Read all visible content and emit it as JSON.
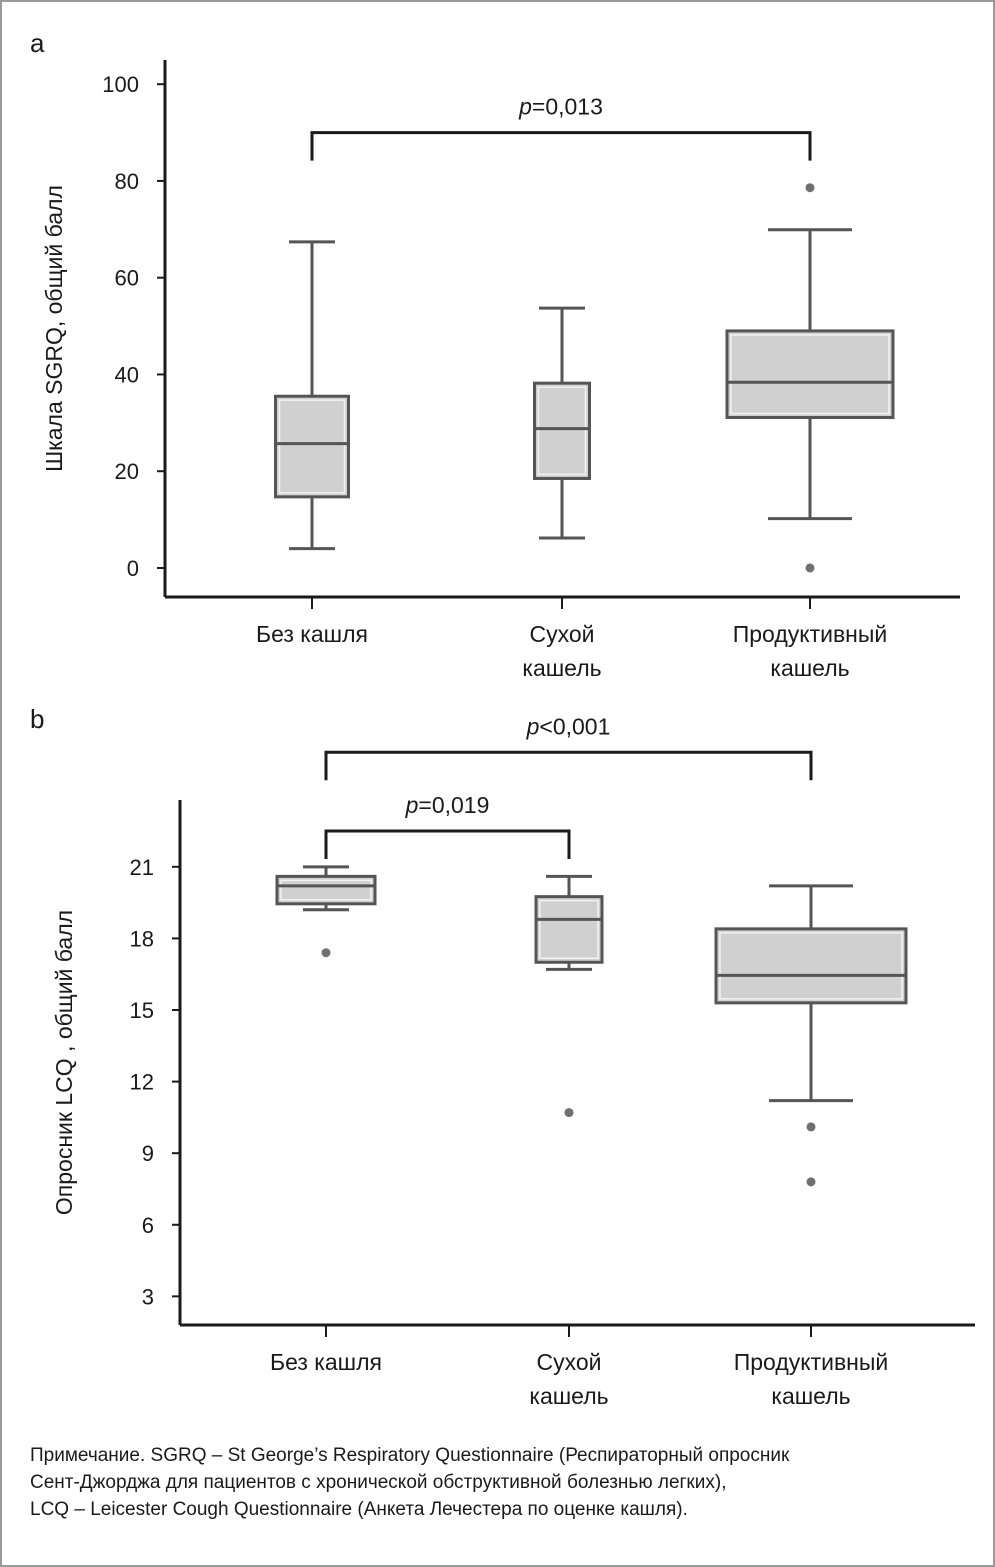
{
  "chart_data": [
    {
      "type": "box",
      "panel_label": "a",
      "ylabel": "Шкала SGRQ, общий балл",
      "ylim": [
        -6,
        105
      ],
      "yticks": [
        0,
        20,
        40,
        60,
        80,
        100
      ],
      "categories": [
        [
          "Без кашля"
        ],
        [
          "Сухой",
          "кашель"
        ],
        [
          "Продуктивный",
          "кашель"
        ]
      ],
      "boxes": [
        {
          "whisker_low": 4,
          "q1": 14.7,
          "median": 25.7,
          "q3": 35.5,
          "whisker_high": 67.4,
          "outliers": []
        },
        {
          "whisker_low": 6.2,
          "q1": 18.5,
          "median": 28.8,
          "q3": 38.2,
          "whisker_high": 53.7,
          "outliers": []
        },
        {
          "whisker_low": 10.2,
          "q1": 31.1,
          "median": 38.4,
          "q3": 49,
          "whisker_high": 69.9,
          "outliers": [
            78.6,
            0
          ]
        }
      ],
      "brackets": [
        {
          "from": 0,
          "to": 2,
          "level": 90,
          "p_label": "p",
          "p_value": "=0,013"
        }
      ]
    },
    {
      "type": "box",
      "panel_label": "b",
      "ylabel": "Опросник LCQ , общий балл",
      "ylim": [
        1.8,
        23.8
      ],
      "yticks": [
        3,
        6,
        9,
        12,
        15,
        18,
        21
      ],
      "categories": [
        [
          "Без кашля"
        ],
        [
          "Сухой",
          "кашель"
        ],
        [
          "Продуктивный",
          "кашель"
        ]
      ],
      "boxes": [
        {
          "whisker_low": 19.2,
          "q1": 19.45,
          "median": 20.2,
          "q3": 20.6,
          "whisker_high": 21,
          "outliers": [
            17.4
          ]
        },
        {
          "whisker_low": 16.7,
          "q1": 17.0,
          "median": 18.8,
          "q3": 19.75,
          "whisker_high": 20.6,
          "outliers": [
            10.7
          ]
        },
        {
          "whisker_low": 11.2,
          "q1": 15.3,
          "median": 16.45,
          "q3": 18.4,
          "whisker_high": 20.2,
          "outliers": [
            10.1,
            7.8
          ]
        }
      ],
      "brackets": [
        {
          "from": 0,
          "to": 2,
          "level": 25.8,
          "p_label": "p",
          "p_value": "<0,001"
        },
        {
          "from": 0,
          "to": 1,
          "level": 22.5,
          "p_label": "p",
          "p_value": "=0,019"
        }
      ]
    }
  ],
  "note": "Примечание. SGRQ – St George’s Respiratory Questionnaire (Респираторный опросник\nСент-Джорджа для пациентов с хронической обструктивной болезнью легких),\nLCQ – Leicester Cough Questionnaire (Анкета Лечестера по оценке кашля).",
  "colors": {
    "box_fill": "#d0d0d0",
    "box_stroke": "#555555",
    "outlier": "#707070",
    "axis": "#1a1a1a"
  }
}
